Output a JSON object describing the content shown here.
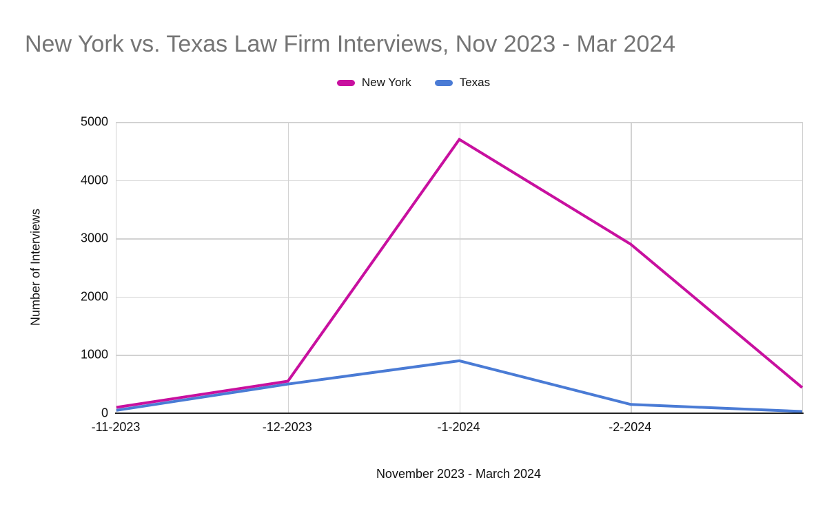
{
  "title": "New York vs. Texas Law Firm Interviews, Nov 2023 - Mar 2024",
  "colors": {
    "new_york": "#c8109f",
    "texas": "#4a7bd5",
    "title_text": "#757575",
    "gridline": "#d2d2d2",
    "axis_line": "#222222",
    "tick_text": "#111111"
  },
  "legend": {
    "position": "top",
    "items": [
      {
        "label": "New York",
        "color": "#c8109f"
      },
      {
        "label": "Texas",
        "color": "#4a7bd5"
      }
    ]
  },
  "chart_data": {
    "type": "line",
    "title": "New York vs. Texas Law Firm Interviews, Nov 2023 - Mar 2024",
    "categories": [
      "-11-2023",
      "-12-2023",
      "-1-2024",
      "-2-2024",
      ""
    ],
    "series": [
      {
        "name": "New York",
        "color": "#c8109f",
        "values": [
          100,
          550,
          4700,
          2900,
          440
        ]
      },
      {
        "name": "Texas",
        "color": "#4a7bd5",
        "values": [
          50,
          500,
          900,
          150,
          30
        ]
      }
    ],
    "xlabel": "November 2023 - March 2024",
    "ylabel": "Number of Interviews",
    "ylim": [
      0,
      5000
    ],
    "yticks": [
      0,
      1000,
      2000,
      3000,
      4000,
      5000
    ],
    "grid": true,
    "legend_position": "top"
  }
}
